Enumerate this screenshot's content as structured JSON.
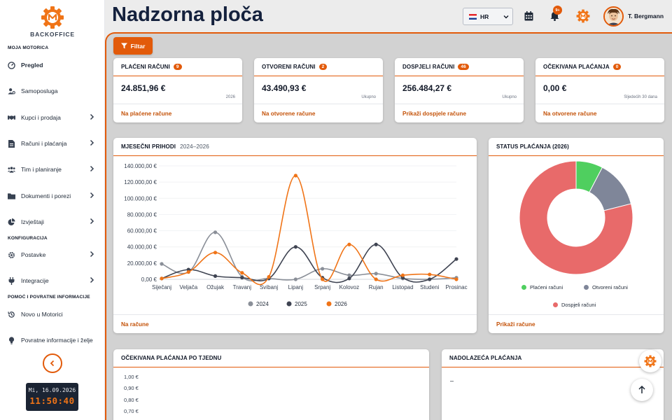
{
  "sidebar": {
    "brand": "BACKOFFICE",
    "section_main": "MOJA MOTORICA",
    "section_config": "KONFIGURACIJA",
    "section_help": "POMOĆ I POVRATNE INFORMACIJE",
    "items": [
      {
        "label": "Pregled",
        "icon": "gauge-icon"
      },
      {
        "label": "Samoposluga",
        "icon": "user-gear-icon"
      },
      {
        "label": "Kupci i prodaja",
        "icon": "handshake-icon"
      },
      {
        "label": "Računi i plaćanja",
        "icon": "invoice-icon"
      },
      {
        "label": "Tim i planiranje",
        "icon": "team-icon"
      },
      {
        "label": "Dokumenti i porezi",
        "icon": "folder-icon"
      },
      {
        "label": "Izvještaji",
        "icon": "pie-icon"
      },
      {
        "label": "Postavke",
        "icon": "gear-icon"
      },
      {
        "label": "Integracije",
        "icon": "plug-icon"
      },
      {
        "label": "Novo u Motorici",
        "icon": "history-icon"
      },
      {
        "label": "Povratne informacije i želje",
        "icon": "lightbulb-icon"
      }
    ],
    "clock_date": "Mi, 16.09.2026",
    "clock_time": "11:50:40"
  },
  "header": {
    "title": "Nadzorna ploča",
    "language": "HR",
    "notifications_badge": "9+",
    "user_name": "T. Bergmann"
  },
  "toolbar": {
    "filter_label": "Filtar"
  },
  "stats": [
    {
      "title": "PLAĆENI RAČUNI",
      "badge": "9",
      "value": "24.851,96 €",
      "sub": "2026",
      "link": "Na plaćene račune"
    },
    {
      "title": "OTVORENI RAČUNI",
      "badge": "2",
      "value": "43.490,93 €",
      "sub": "Ukupno",
      "link": "Na otvorene račune"
    },
    {
      "title": "DOSPJELI RAČUNI",
      "badge": "46",
      "value": "256.484,27 €",
      "sub": "Ukupno",
      "link": "Prikaži dospjele račune"
    },
    {
      "title": "OČEKIVANA PLAĆANJA",
      "badge": "0",
      "value": "0,00 €",
      "sub": "Sljedećih 30 dana",
      "link": "Na otvorene račune"
    }
  ],
  "monthly": {
    "title": "MJESEČNI PRIHODI",
    "range": "2024–2026",
    "link": "Na račune"
  },
  "status": {
    "title": "STATUS PLAĆANJA (2026)",
    "link": "Prikaži račune"
  },
  "weekly": {
    "title": "OČEKIVANA PLAĆANJA PO TJEDNU",
    "ticks": [
      "1,00 €",
      "0,90 €",
      "0,80 €",
      "0,70 €"
    ]
  },
  "upcoming": {
    "title": "NADOLAZEĆA PLAĆANJA",
    "empty": "–"
  },
  "chart_data": [
    {
      "type": "line",
      "categories": [
        "Siječanj",
        "Veljača",
        "Ožujak",
        "Travanj",
        "Svibanj",
        "Lipanj",
        "Srpanj",
        "Kolovoz",
        "Rujan",
        "Listopad",
        "Studeni",
        "Prosinac"
      ],
      "y_ticks": [
        "0,00 €",
        "20.000,00 €",
        "40.000,00 €",
        "60.000,00 €",
        "80.000,00 €",
        "100.000,00 €",
        "120.000,00 €",
        "140.000,00 €"
      ],
      "ylim": [
        0,
        140000
      ],
      "legend_position": "bottom",
      "series": [
        {
          "name": "2024",
          "color": "#8a8f98",
          "values": [
            19000,
            9000,
            58000,
            3000,
            1000,
            0,
            13000,
            5000,
            7000,
            1000,
            0,
            2000
          ]
        },
        {
          "name": "2025",
          "color": "#3f4452",
          "values": [
            1000,
            12000,
            4000,
            2000,
            1000,
            40000,
            2000,
            1000,
            43000,
            2000,
            0,
            25000
          ]
        },
        {
          "name": "2026",
          "color": "#f07417",
          "values": [
            1000,
            9000,
            33000,
            8000,
            3000,
            128000,
            0,
            43000,
            0,
            5000,
            6000,
            0
          ]
        }
      ]
    },
    {
      "type": "pie",
      "legend_position": "bottom",
      "slices": [
        {
          "name": "Plaćeni računi",
          "value": 24851.96,
          "color": "#4fcf5f"
        },
        {
          "name": "Otvoreni računi",
          "value": 43490.93,
          "color": "#7f8699"
        },
        {
          "name": "Dospjeli računi",
          "value": 256484.27,
          "color": "#e86a6a"
        }
      ]
    }
  ]
}
